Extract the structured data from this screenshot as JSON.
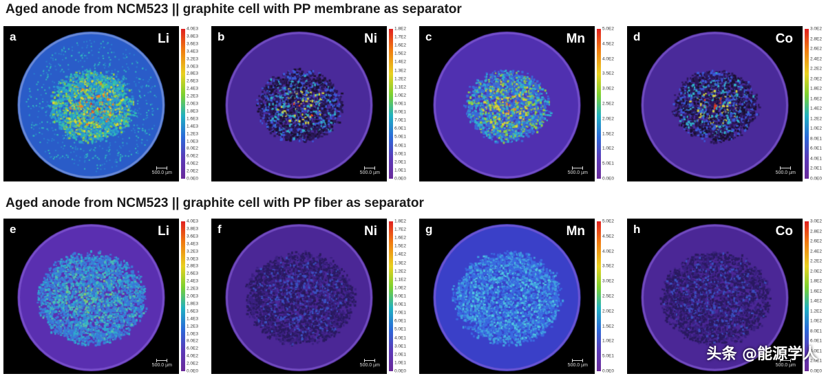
{
  "rows": [
    {
      "title": "Aged anode from NCM523 || graphite cell with PP membrane as separator",
      "panels": [
        {
          "label": "a",
          "element": "Li",
          "scale": "500.0 µm",
          "ticks": [
            "4.0E3",
            "3.8E3",
            "3.6E3",
            "3.4E3",
            "3.2E3",
            "3.0E3",
            "2.8E3",
            "2.6E3",
            "2.4E3",
            "2.2E3",
            "2.0E3",
            "1.8E3",
            "1.6E3",
            "1.4E3",
            "1.2E3",
            "1.0E3",
            "8.0E2",
            "6.0E2",
            "4.0E2",
            "2.0E2",
            "0.0E0"
          ],
          "style": "hot-broad"
        },
        {
          "label": "b",
          "element": "Ni",
          "scale": "500.0 µm",
          "ticks": [
            "1.8E2",
            "1.7E2",
            "1.6E2",
            "1.5E2",
            "1.4E2",
            "1.3E2",
            "1.2E2",
            "1.1E2",
            "1.0E2",
            "9.0E1",
            "8.0E1",
            "7.0E1",
            "6.0E1",
            "5.0E1",
            "4.0E1",
            "3.0E1",
            "2.0E1",
            "1.0E1",
            "0.0E0"
          ],
          "style": "dark-center"
        },
        {
          "label": "c",
          "element": "Mn",
          "scale": "500.0 µm",
          "ticks": [
            "5.0E2",
            "4.5E2",
            "4.0E2",
            "3.5E2",
            "3.0E2",
            "2.5E2",
            "2.0E2",
            "1.5E2",
            "1.0E2",
            "5.0E1",
            "0.0E0"
          ],
          "style": "bright-center"
        },
        {
          "label": "d",
          "element": "Co",
          "scale": "500.0 µm",
          "ticks": [
            "3.0E2",
            "2.8E2",
            "2.6E2",
            "2.4E2",
            "2.2E2",
            "2.0E2",
            "1.8E2",
            "1.6E2",
            "1.4E2",
            "1.2E2",
            "1.0E2",
            "8.0E1",
            "6.0E1",
            "4.0E1",
            "2.0E1",
            "0.0E0"
          ],
          "style": "dark-center"
        }
      ]
    },
    {
      "title": "Aged anode from NCM523 || graphite cell with PP fiber as separator",
      "panels": [
        {
          "label": "e",
          "element": "Li",
          "scale": "500.0 µm",
          "ticks": [
            "4.0E3",
            "3.8E3",
            "3.6E3",
            "3.4E3",
            "3.2E3",
            "3.0E3",
            "2.8E3",
            "2.6E3",
            "2.4E3",
            "2.2E3",
            "2.0E3",
            "1.8E3",
            "1.6E3",
            "1.4E3",
            "1.2E3",
            "1.0E3",
            "8.0E2",
            "6.0E2",
            "4.0E2",
            "2.0E2",
            "0.0E0"
          ],
          "style": "uniform-cyan"
        },
        {
          "label": "f",
          "element": "Ni",
          "scale": "500.0 µm",
          "ticks": [
            "1.8E2",
            "1.7E2",
            "1.6E2",
            "1.5E2",
            "1.4E2",
            "1.3E2",
            "1.2E2",
            "1.1E2",
            "1.0E2",
            "9.0E1",
            "8.0E1",
            "7.0E1",
            "6.0E1",
            "5.0E1",
            "4.0E1",
            "3.0E1",
            "2.0E1",
            "1.0E1",
            "0.0E0"
          ],
          "style": "uniform-dark"
        },
        {
          "label": "g",
          "element": "Mn",
          "scale": "500.0 µm",
          "ticks": [
            "5.0E2",
            "4.5E2",
            "4.0E2",
            "3.5E2",
            "3.0E2",
            "2.5E2",
            "2.0E2",
            "1.5E2",
            "1.0E2",
            "5.0E1",
            "0.0E0"
          ],
          "style": "uniform-blue"
        },
        {
          "label": "h",
          "element": "Co",
          "scale": "500.0 µm",
          "ticks": [
            "3.0E2",
            "2.8E2",
            "2.6E2",
            "2.4E2",
            "2.2E2",
            "2.0E2",
            "1.8E2",
            "1.6E2",
            "1.4E2",
            "1.2E2",
            "1.0E2",
            "8.0E1",
            "6.0E1",
            "4.0E1",
            "2.0E1",
            "0.0E0"
          ],
          "style": "uniform-dark"
        }
      ]
    }
  ],
  "watermark": "头条 @能源学人"
}
